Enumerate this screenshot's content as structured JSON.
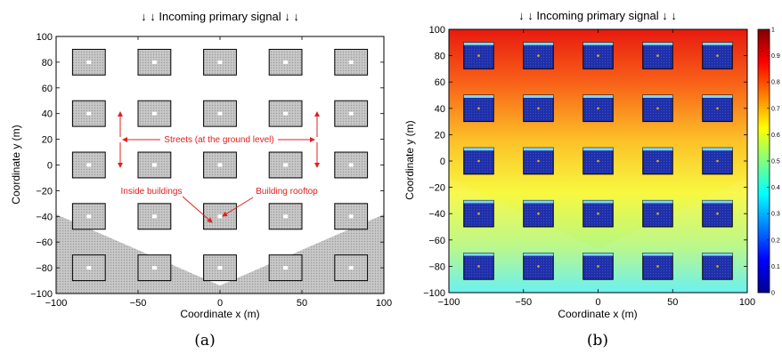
{
  "panel_a": {
    "title": "↓ ↓  Incoming primary signal  ↓ ↓",
    "xlabel": "Coordinate x (m)",
    "ylabel": "Coordinate y (m)",
    "caption": "(a)",
    "annotations": {
      "streets": "Streets (at the ground level)",
      "inside": "Inside buildings",
      "rooftop": "Building rooftop"
    }
  },
  "panel_b": {
    "title": "↓ ↓  Incoming primary signal  ↓ ↓",
    "xlabel": "Coordinate x (m)",
    "ylabel": "Coordinate y (m)",
    "caption": "(b)",
    "colorbar_ticks": [
      "0",
      "0.1",
      "0.2",
      "0.3",
      "0.4",
      "0.5",
      "0.6",
      "0.7",
      "0.8",
      "0.9",
      "1"
    ]
  },
  "colors": {
    "annotation": "#e02020",
    "building_gray": "#bdbdbd",
    "building_blue": "#1e2fa8",
    "shadow_gray": "#c4c4c4"
  },
  "chart_data": [
    {
      "type": "heatmap",
      "title": "↓ ↓  Incoming primary signal  ↓ ↓",
      "xlabel": "Coordinate x (m)",
      "ylabel": "Coordinate y (m)",
      "xlim": [
        -100,
        100
      ],
      "ylim": [
        -100,
        100
      ],
      "xticks": [
        "−100",
        "−50",
        "0",
        "50",
        "100"
      ],
      "yticks": [
        "100",
        "80",
        "60",
        "40",
        "20",
        "0",
        "−20",
        "−40",
        "−60",
        "−80",
        "−100"
      ],
      "building_centers_x": [
        -80,
        -40,
        0,
        40,
        80
      ],
      "building_centers_y": [
        80,
        40,
        0,
        -40,
        -80
      ],
      "building_size": 20
    },
    {
      "type": "heatmap",
      "title": "↓ ↓  Incoming primary signal  ↓ ↓",
      "xlabel": "Coordinate x (m)",
      "ylabel": "Coordinate y (m)",
      "xlim": [
        -100,
        100
      ],
      "ylim": [
        -100,
        100
      ],
      "xticks": [
        "−100",
        "−50",
        "0",
        "50",
        "100"
      ],
      "yticks": [
        "100",
        "80",
        "60",
        "40",
        "20",
        "0",
        "−20",
        "−40",
        "−60",
        "−80",
        "−100"
      ],
      "colorbar_range": [
        0,
        1
      ],
      "building_centers_x": [
        -80,
        -40,
        0,
        40,
        80
      ],
      "building_centers_y": [
        80,
        40,
        0,
        -40,
        -80
      ],
      "building_size": 20
    }
  ]
}
